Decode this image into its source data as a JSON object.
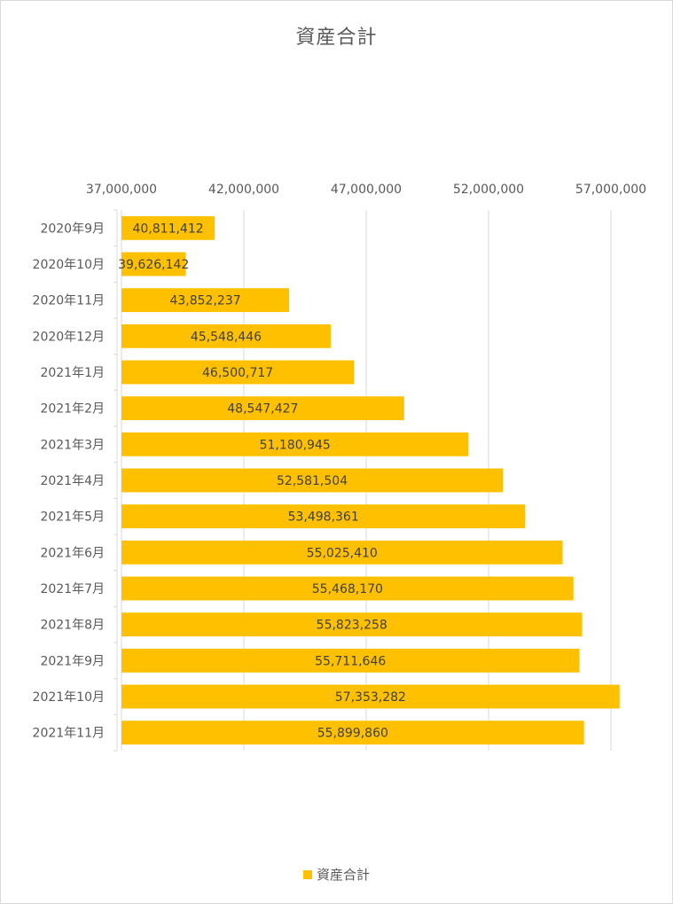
{
  "chart_data": {
    "type": "bar",
    "orientation": "horizontal",
    "title": "資産合計",
    "categories": [
      "2020年9月",
      "2020年10月",
      "2020年11月",
      "2020年12月",
      "2021年1月",
      "2021年2月",
      "2021年3月",
      "2021年4月",
      "2021年5月",
      "2021年6月",
      "2021年7月",
      "2021年8月",
      "2021年9月",
      "2021年10月",
      "2021年11月"
    ],
    "series": [
      {
        "name": "資産合計",
        "values": [
          40811412,
          39626142,
          43852237,
          45548446,
          46500717,
          48547427,
          51180945,
          52581504,
          53498361,
          55025410,
          55468170,
          55823258,
          55711646,
          57353282,
          55899860
        ],
        "labels": [
          "40,811,412",
          "39,626,142",
          "43,852,237",
          "45,548,446",
          "46,500,717",
          "48,547,427",
          "51,180,945",
          "52,581,504",
          "53,498,361",
          "55,025,410",
          "55,468,170",
          "55,823,258",
          "55,711,646",
          "57,353,282",
          "55,899,860"
        ]
      }
    ],
    "xlim": [
      37000000,
      57000000
    ],
    "x_ticks": [
      37000000,
      42000000,
      47000000,
      52000000,
      57000000
    ],
    "x_tick_labels": [
      "37,000,000",
      "42,000,000",
      "47,000,000",
      "52,000,000",
      "57,000,000"
    ],
    "x_axis_position": "top",
    "grid": true,
    "legend_position": "bottom",
    "bar_color": "#ffc000",
    "gridline_color": "#d9d9d9",
    "text_color": "#595959"
  }
}
